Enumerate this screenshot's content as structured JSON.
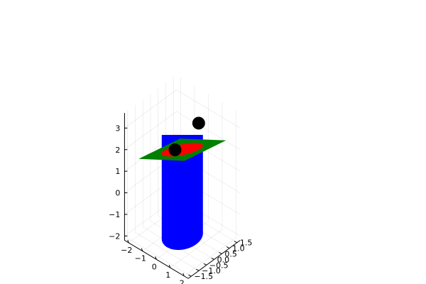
{
  "chart_data": {
    "type": "surface3d",
    "title": "",
    "xlabel": "",
    "ylabel": "",
    "zlabel": "",
    "grid": true,
    "legend": "none",
    "axes": {
      "x": {
        "ticks": [
          -2,
          -1,
          0,
          1,
          2
        ],
        "tick_labels": [
          "−2",
          "−1",
          "0",
          "1",
          "2"
        ],
        "lim": [
          -2.3,
          2.3
        ]
      },
      "y": {
        "ticks": [
          -1.5,
          -1.0,
          -0.5,
          0.0,
          0.5,
          1.0,
          1.5
        ],
        "tick_labels": [
          "−1.5",
          "−1.0",
          "−0.5",
          "0.0",
          "0.5",
          "1.0",
          "1.5"
        ],
        "lim": [
          -1.7,
          1.7
        ]
      },
      "z": {
        "ticks": [
          -2,
          -1,
          0,
          1,
          2,
          3
        ],
        "tick_labels": [
          "−2",
          "−1",
          "0",
          "1",
          "2",
          "3"
        ],
        "lim": [
          -2.2,
          3.7
        ]
      }
    },
    "series": [
      {
        "kind": "cylinder",
        "color": "#0000ff",
        "radius": 1,
        "z_range": [
          -2,
          2
        ]
      },
      {
        "kind": "plane",
        "color": "#007f00",
        "z_at_origin": 2,
        "x_slope": 0.7,
        "y_slope": -0.55
      },
      {
        "kind": "intersection-ellipse",
        "color": "#ff0000"
      },
      {
        "kind": "points",
        "color": "#000000",
        "points": [
          [
            -0.75,
            0.2,
            1.6
          ],
          [
            0.85,
            0.3,
            3.4
          ]
        ]
      }
    ]
  }
}
